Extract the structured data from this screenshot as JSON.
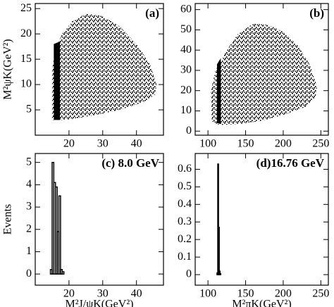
{
  "chart_data": [
    {
      "type": "scatter",
      "annotation": "(a)",
      "ylabel": "M²ψK(GeV²)",
      "xlim": [
        10,
        48
      ],
      "xticks": [
        20,
        30,
        40
      ],
      "ylim": [
        0,
        26
      ],
      "yticks": [
        5,
        10,
        15,
        20,
        25
      ],
      "series": [
        {
          "name": "region",
          "color": "#000000",
          "x": [
            15,
            15,
            16,
            18,
            21,
            25,
            30,
            35,
            40,
            44,
            46,
            45.5,
            42,
            35,
            28,
            22,
            18
          ],
          "y": [
            3,
            13,
            17,
            20,
            22.5,
            24,
            23.5,
            21.5,
            18,
            14,
            10,
            8,
            6.5,
            5,
            4,
            3.3,
            3
          ]
        },
        {
          "name": "band",
          "color": "#000000",
          "x": [
            15.5,
            15.5,
            17.3,
            17.3
          ],
          "y": [
            3,
            18,
            18.5,
            3
          ]
        }
      ]
    },
    {
      "type": "scatter",
      "annotation": "(b)",
      "xlim": [
        83,
        260
      ],
      "xticks": [
        100,
        150,
        200,
        250
      ],
      "ylim": [
        -2,
        63
      ],
      "yticks": [
        0,
        10,
        20,
        30,
        40,
        50,
        60
      ],
      "series": [
        {
          "name": "region",
          "color": "#000000",
          "x": [
            105,
            104,
            110,
            125,
            140,
            160,
            180,
            200,
            220,
            235,
            245,
            243,
            230,
            200,
            170,
            140,
            115
          ],
          "y": [
            5,
            20,
            30,
            40,
            48,
            53,
            52.5,
            49,
            42,
            33,
            22,
            17,
            12,
            8,
            5,
            3.5,
            3
          ]
        },
        {
          "name": "band",
          "color": "#000000",
          "x": [
            112,
            112,
            117,
            117
          ],
          "y": [
            4,
            33,
            36,
            3.5
          ]
        }
      ]
    },
    {
      "type": "histogram",
      "annotation": "(c) 8.0 GeV",
      "ylabel": "Events",
      "xlabel": "M²J/ψK(GeV²)",
      "xlim": [
        10,
        48
      ],
      "xticks": [
        20,
        30,
        40
      ],
      "ylim": [
        -0.5,
        5.4
      ],
      "yticks": [
        0,
        1,
        2,
        3,
        4,
        5
      ],
      "color": "#000000",
      "bins": [
        14.5,
        15,
        15.5,
        16,
        16.5,
        17,
        17.5,
        18,
        18.5
      ],
      "values": [
        0.2,
        5.0,
        4.1,
        3.9,
        1.9,
        3.5,
        0.2,
        0.1
      ]
    },
    {
      "type": "histogram",
      "annotation": "(d)16.76 GeV",
      "xlabel": "M²πK(GeV²)",
      "xlim": [
        83,
        260
      ],
      "xticks": [
        100,
        150,
        200,
        250
      ],
      "ylim": [
        -0.06,
        0.69
      ],
      "yticks": [
        0,
        0.1,
        0.2,
        0.3,
        0.4,
        0.5,
        0.6
      ],
      "color": "#000000",
      "bins": [
        112,
        113,
        114,
        115,
        116,
        117
      ],
      "values": [
        0.01,
        0.63,
        0.27,
        0.02,
        0.005
      ]
    }
  ]
}
